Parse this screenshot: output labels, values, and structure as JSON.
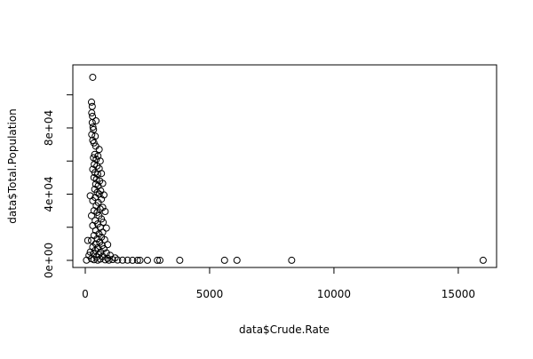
{
  "chart_data": {
    "type": "scatter",
    "xlabel": "data$Crude.Rate",
    "ylabel": "data$Total.Population",
    "color": "#000000",
    "x": [
      300,
      250,
      280,
      260,
      290,
      280,
      430,
      310,
      330,
      260,
      400,
      300,
      350,
      560,
      420,
      380,
      510,
      330,
      440,
      600,
      360,
      470,
      300,
      560,
      390,
      500,
      650,
      350,
      450,
      580,
      420,
      700,
      520,
      380,
      620,
      480,
      200,
      560,
      750,
      400,
      650,
      300,
      520,
      440,
      700,
      600,
      350,
      480,
      800,
      250,
      550,
      650,
      400,
      720,
      500,
      300,
      600,
      850,
      420,
      700,
      550,
      350,
      650,
      480,
      780,
      250,
      100,
      580,
      420,
      900,
      680,
      300,
      500,
      750,
      400,
      200,
      620,
      850,
      330,
      550,
      1000,
      150,
      700,
      450,
      1200,
      900,
      250,
      600,
      1100,
      350,
      800,
      1300,
      50,
      500,
      950,
      1500,
      1700,
      1900,
      2100,
      2200,
      2500,
      2900,
      3000,
      3800,
      5600,
      6100,
      8300,
      16000
    ],
    "values": [
      110600,
      95600,
      93000,
      89100,
      87000,
      83200,
      84300,
      80500,
      79000,
      76000,
      75000,
      72500,
      71000,
      67000,
      69000,
      64000,
      63000,
      62000,
      61000,
      60000,
      58000,
      57000,
      55000,
      55500,
      53000,
      52000,
      52500,
      50000,
      49000,
      48000,
      46000,
      46500,
      45000,
      43000,
      42000,
      41000,
      39000,
      40000,
      39500,
      38000,
      37000,
      36000,
      35000,
      33000,
      32000,
      31000,
      30000,
      29000,
      29500,
      27000,
      27000,
      25000,
      24000,
      23000,
      22000,
      21000,
      20000,
      19500,
      18000,
      17000,
      16000,
      15000,
      14000,
      13000,
      12500,
      12000,
      12000,
      11000,
      10000,
      9500,
      9000,
      8000,
      7500,
      7000,
      6000,
      5000,
      5000,
      4500,
      4000,
      3500,
      3000,
      3000,
      2500,
      2000,
      1500,
      1200,
      1000,
      800,
      500,
      400,
      300,
      200,
      100,
      100,
      100,
      100,
      100,
      50,
      50,
      50,
      50,
      50,
      50,
      50,
      50,
      50,
      50,
      50
    ],
    "xlim": [
      -500,
      16540
    ],
    "ylim": [
      -4300,
      118100
    ],
    "xticks": [
      0,
      5000,
      10000,
      15000
    ],
    "yticks": [
      {
        "value": 0,
        "label": "0e+00"
      },
      {
        "value": 20000,
        "label": null
      },
      {
        "value": 40000,
        "label": "4e+04"
      },
      {
        "value": 60000,
        "label": null
      },
      {
        "value": 80000,
        "label": "8e+04"
      },
      {
        "value": 100000,
        "label": null
      }
    ]
  }
}
